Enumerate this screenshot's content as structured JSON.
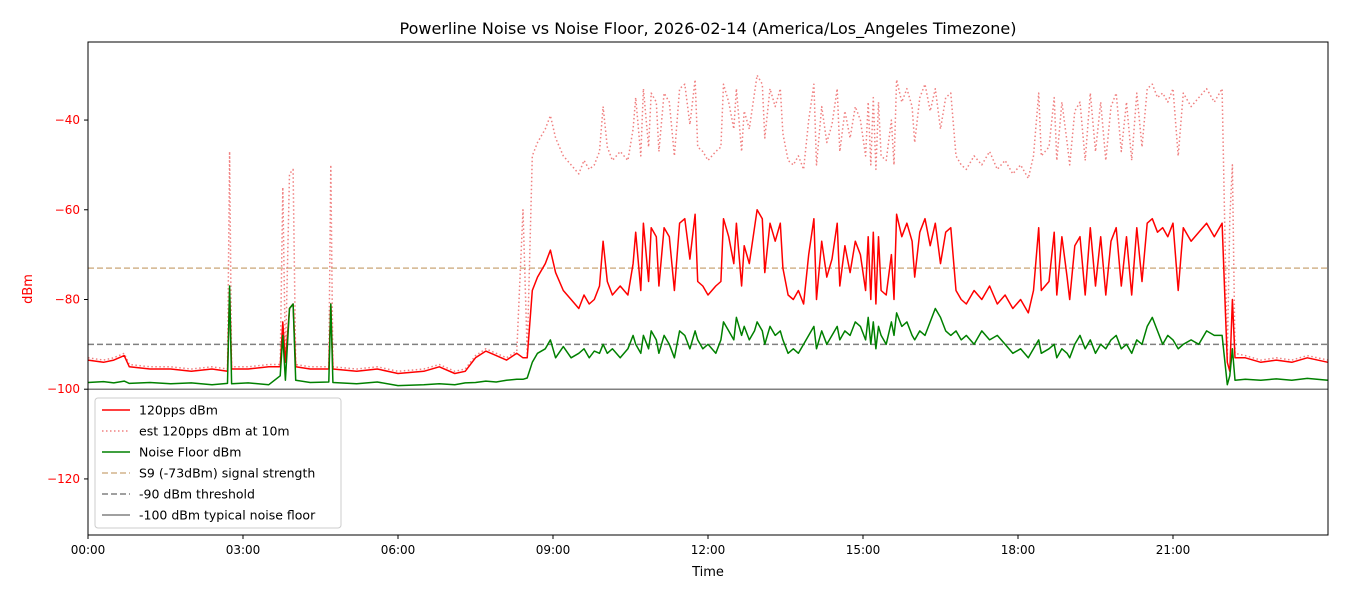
{
  "chart_data": {
    "type": "line",
    "title": "Powerline Noise vs Noise Floor, 2026-02-14 (America/Los_Angeles Timezone)",
    "xlabel": "Time",
    "ylabel": "dBm",
    "xlim": [
      0,
      24
    ],
    "ylim": [
      -132.5,
      -22.6
    ],
    "x_unit": "hours",
    "xticks": [
      0,
      3,
      6,
      9,
      12,
      15,
      18,
      21
    ],
    "xtick_labels": [
      "00:00",
      "03:00",
      "06:00",
      "09:00",
      "12:00",
      "15:00",
      "18:00",
      "21:00"
    ],
    "yticks": [
      -40,
      -60,
      -80,
      -100,
      -120
    ],
    "ytick_labels": [
      "−40",
      "−60",
      "−80",
      "−100",
      "−120"
    ],
    "grid": false,
    "legend_position": "lower-left",
    "colors": {
      "red": "#ff0000",
      "est": "#f08080",
      "green": "#008000",
      "s9": "#d2b48c",
      "threshold": "#808080",
      "floor": "#808080",
      "axis_label": "#ff0000"
    },
    "legend": [
      {
        "label": "120pps dBm",
        "key": "red",
        "style": "solid"
      },
      {
        "label": "est 120pps dBm at 10m",
        "key": "est",
        "style": "dotted"
      },
      {
        "label": "Noise Floor dBm",
        "key": "green",
        "style": "solid"
      },
      {
        "label": "S9 (-73dBm) signal strength",
        "key": "s9",
        "style": "dashed"
      },
      {
        "label": "-90 dBm threshold",
        "key": "threshold",
        "style": "dashed"
      },
      {
        "label": "-100 dBm typical noise floor",
        "key": "floor",
        "style": "solid"
      }
    ],
    "hlines": [
      {
        "key": "s9",
        "y": -73,
        "style": "dashed"
      },
      {
        "key": "threshold",
        "y": -90,
        "style": "dashed"
      },
      {
        "key": "floor",
        "y": -100,
        "style": "solid"
      }
    ],
    "columns": [
      "hour",
      "120pps dBm",
      "est 120pps dBm at 10m",
      "Noise Floor dBm"
    ],
    "rows": [
      [
        0,
        -93.5,
        -93,
        -98.5
      ],
      [
        0.3,
        -94,
        -93.5,
        -98.3
      ],
      [
        0.5,
        -93.5,
        -93,
        -98.6
      ],
      [
        0.7,
        -92.5,
        -92,
        -98.2
      ],
      [
        0.8,
        -95,
        -94.5,
        -98.7
      ],
      [
        1.2,
        -95.5,
        -95,
        -98.5
      ],
      [
        1.6,
        -95.5,
        -95,
        -98.8
      ],
      [
        2,
        -96,
        -95.5,
        -98.6
      ],
      [
        2.4,
        -95.5,
        -95,
        -99
      ],
      [
        2.7,
        -96,
        -95.5,
        -98.7
      ],
      [
        2.74,
        -78,
        -47,
        -77
      ],
      [
        2.78,
        -95.5,
        -95,
        -98.8
      ],
      [
        3.1,
        -95.5,
        -95,
        -98.6
      ],
      [
        3.5,
        -95,
        -94.5,
        -99
      ],
      [
        3.72,
        -95,
        -94.5,
        -97
      ],
      [
        3.77,
        -85,
        -55,
        -88
      ],
      [
        3.82,
        -94,
        -93.5,
        -98
      ],
      [
        3.9,
        -82,
        -52,
        -82
      ],
      [
        3.97,
        -81,
        -51,
        -81
      ],
      [
        4.02,
        -95,
        -94.5,
        -98
      ],
      [
        4.3,
        -95.5,
        -95,
        -98.5
      ],
      [
        4.66,
        -95.5,
        -95,
        -98.4
      ],
      [
        4.7,
        -81,
        -50,
        -81
      ],
      [
        4.74,
        -95.5,
        -95,
        -98.5
      ],
      [
        5.2,
        -96,
        -95.5,
        -98.8
      ],
      [
        5.6,
        -95.5,
        -95,
        -98.4
      ],
      [
        6,
        -96.5,
        -96,
        -99.2
      ],
      [
        6.5,
        -96,
        -95.5,
        -99
      ],
      [
        6.8,
        -95,
        -94.5,
        -98.8
      ],
      [
        7.1,
        -96.5,
        -96,
        -99
      ],
      [
        7.3,
        -96,
        -95.5,
        -98.6
      ],
      [
        7.5,
        -93,
        -92.5,
        -98.5
      ],
      [
        7.7,
        -91.5,
        -91,
        -98.2
      ],
      [
        7.9,
        -92.5,
        -92,
        -98.4
      ],
      [
        8.1,
        -93.5,
        -93,
        -98
      ],
      [
        8.3,
        -92,
        -91.5,
        -97.8
      ],
      [
        8.42,
        -93,
        -60,
        -97.8
      ],
      [
        8.5,
        -93,
        -92,
        -97.5
      ],
      [
        8.6,
        -78,
        -48,
        -94
      ],
      [
        8.7,
        -75,
        -45,
        -92
      ],
      [
        8.85,
        -72,
        -42,
        -91
      ],
      [
        8.95,
        -69,
        -39,
        -89
      ],
      [
        9.05,
        -74,
        -44,
        -93
      ],
      [
        9.2,
        -78,
        -48,
        -90.5
      ],
      [
        9.35,
        -80,
        -50,
        -93
      ],
      [
        9.5,
        -82,
        -52,
        -92
      ],
      [
        9.6,
        -79,
        -49,
        -91
      ],
      [
        9.7,
        -81,
        -51,
        -93
      ],
      [
        9.8,
        -80,
        -50,
        -91.5
      ],
      [
        9.9,
        -77,
        -47,
        -92
      ],
      [
        9.97,
        -67,
        -37,
        -90
      ],
      [
        10.05,
        -76,
        -46,
        -92
      ],
      [
        10.15,
        -79,
        -49,
        -91
      ],
      [
        10.3,
        -77,
        -47,
        -93
      ],
      [
        10.45,
        -79,
        -49,
        -91
      ],
      [
        10.55,
        -72,
        -42,
        -88
      ],
      [
        10.6,
        -65,
        -35,
        -90
      ],
      [
        10.7,
        -78,
        -48,
        -92
      ],
      [
        10.75,
        -63,
        -33,
        -88
      ],
      [
        10.85,
        -76,
        -46,
        -91
      ],
      [
        10.9,
        -64,
        -34,
        -87
      ],
      [
        11.0,
        -66,
        -36,
        -89
      ],
      [
        11.05,
        -77,
        -47,
        -92
      ],
      [
        11.15,
        -64,
        -34,
        -88
      ],
      [
        11.25,
        -66,
        -36,
        -90
      ],
      [
        11.35,
        -78,
        -48,
        -93
      ],
      [
        11.45,
        -63,
        -33,
        -87
      ],
      [
        11.55,
        -62,
        -32,
        -88
      ],
      [
        11.65,
        -71,
        -41,
        -91
      ],
      [
        11.75,
        -61,
        -31,
        -87
      ],
      [
        11.8,
        -76,
        -46,
        -89
      ],
      [
        11.9,
        -77,
        -47,
        -91
      ],
      [
        12.0,
        -79,
        -49,
        -90
      ],
      [
        12.15,
        -77,
        -47,
        -92
      ],
      [
        12.25,
        -76,
        -46,
        -89
      ],
      [
        12.3,
        -62,
        -32,
        -85
      ],
      [
        12.4,
        -66,
        -36,
        -87
      ],
      [
        12.5,
        -72,
        -42,
        -89
      ],
      [
        12.55,
        -63,
        -33,
        -84
      ],
      [
        12.65,
        -77,
        -47,
        -88
      ],
      [
        12.7,
        -68,
        -38,
        -86
      ],
      [
        12.8,
        -72,
        -42,
        -89
      ],
      [
        12.9,
        -64,
        -34,
        -87
      ],
      [
        12.95,
        -60,
        -30,
        -85
      ],
      [
        13.05,
        -62,
        -32,
        -87
      ],
      [
        13.1,
        -74,
        -44,
        -90
      ],
      [
        13.2,
        -63,
        -33,
        -86
      ],
      [
        13.3,
        -67,
        -37,
        -88
      ],
      [
        13.4,
        -63,
        -33,
        -87
      ],
      [
        13.45,
        -73,
        -43,
        -89
      ],
      [
        13.55,
        -79,
        -49,
        -92
      ],
      [
        13.65,
        -80,
        -50,
        -91
      ],
      [
        13.75,
        -78,
        -48,
        -92
      ],
      [
        13.85,
        -81,
        -51,
        -90
      ],
      [
        13.95,
        -70,
        -40,
        -88
      ],
      [
        14.05,
        -62,
        -32,
        -86
      ],
      [
        14.1,
        -80,
        -50,
        -91
      ],
      [
        14.2,
        -67,
        -37,
        -87
      ],
      [
        14.3,
        -75,
        -45,
        -90
      ],
      [
        14.4,
        -71,
        -41,
        -88
      ],
      [
        14.5,
        -63,
        -33,
        -86
      ],
      [
        14.55,
        -77,
        -47,
        -89
      ],
      [
        14.65,
        -68,
        -38,
        -87
      ],
      [
        14.75,
        -74,
        -44,
        -88
      ],
      [
        14.85,
        -67,
        -37,
        -85
      ],
      [
        14.95,
        -70,
        -40,
        -86
      ],
      [
        15.05,
        -78,
        -48,
        -89
      ],
      [
        15.1,
        -66,
        -36,
        -84
      ],
      [
        15.15,
        -80,
        -50,
        -90
      ],
      [
        15.2,
        -65,
        -35,
        -85
      ],
      [
        15.25,
        -81,
        -51,
        -91
      ],
      [
        15.3,
        -66,
        -36,
        -86
      ],
      [
        15.35,
        -78,
        -48,
        -88
      ],
      [
        15.45,
        -79,
        -49,
        -90
      ],
      [
        15.55,
        -70,
        -40,
        -85
      ],
      [
        15.6,
        -80,
        -50,
        -88
      ],
      [
        15.65,
        -61,
        -31,
        -83
      ],
      [
        15.75,
        -66,
        -36,
        -86
      ],
      [
        15.85,
        -63,
        -33,
        -85
      ],
      [
        15.95,
        -67,
        -37,
        -88
      ],
      [
        16.0,
        -75,
        -45,
        -89
      ],
      [
        16.1,
        -65,
        -35,
        -87
      ],
      [
        16.2,
        -62,
        -32,
        -88
      ],
      [
        16.3,
        -68,
        -38,
        -85
      ],
      [
        16.4,
        -63,
        -33,
        -82
      ],
      [
        16.5,
        -72,
        -42,
        -84
      ],
      [
        16.6,
        -65,
        -35,
        -87
      ],
      [
        16.7,
        -64,
        -34,
        -88
      ],
      [
        16.8,
        -78,
        -48,
        -87
      ],
      [
        16.9,
        -80,
        -50,
        -89
      ],
      [
        17.0,
        -81,
        -51,
        -88
      ],
      [
        17.15,
        -78,
        -48,
        -90
      ],
      [
        17.3,
        -80,
        -50,
        -87
      ],
      [
        17.45,
        -77,
        -47,
        -89
      ],
      [
        17.6,
        -81,
        -51,
        -88
      ],
      [
        17.75,
        -79,
        -49,
        -90
      ],
      [
        17.9,
        -82,
        -52,
        -92
      ],
      [
        18.05,
        -80,
        -50,
        -91
      ],
      [
        18.2,
        -83,
        -53,
        -93
      ],
      [
        18.3,
        -78,
        -48,
        -91
      ],
      [
        18.4,
        -64,
        -34,
        -89
      ],
      [
        18.45,
        -78,
        -48,
        -92
      ],
      [
        18.6,
        -76,
        -46,
        -91
      ],
      [
        18.7,
        -65,
        -35,
        -90
      ],
      [
        18.75,
        -79,
        -49,
        -93
      ],
      [
        18.85,
        -66,
        -36,
        -91
      ],
      [
        18.95,
        -75,
        -45,
        -92
      ],
      [
        19.0,
        -80,
        -50,
        -93
      ],
      [
        19.1,
        -68,
        -38,
        -90
      ],
      [
        19.2,
        -66,
        -36,
        -88
      ],
      [
        19.3,
        -79,
        -49,
        -91
      ],
      [
        19.4,
        -64,
        -34,
        -89
      ],
      [
        19.5,
        -77,
        -47,
        -92
      ],
      [
        19.6,
        -66,
        -36,
        -90
      ],
      [
        19.7,
        -79,
        -49,
        -91
      ],
      [
        19.8,
        -67,
        -37,
        -89
      ],
      [
        19.9,
        -64,
        -34,
        -88
      ],
      [
        20.0,
        -77,
        -47,
        -91
      ],
      [
        20.1,
        -66,
        -36,
        -90
      ],
      [
        20.2,
        -79,
        -49,
        -92
      ],
      [
        20.3,
        -64,
        -34,
        -89
      ],
      [
        20.4,
        -76,
        -46,
        -90
      ],
      [
        20.5,
        -63,
        -33,
        -86
      ],
      [
        20.6,
        -62,
        -32,
        -84
      ],
      [
        20.7,
        -65,
        -35,
        -87
      ],
      [
        20.8,
        -64,
        -34,
        -90
      ],
      [
        20.9,
        -66,
        -36,
        -88
      ],
      [
        21.0,
        -63,
        -33,
        -89
      ],
      [
        21.1,
        -78,
        -48,
        -91
      ],
      [
        21.2,
        -64,
        -34,
        -90
      ],
      [
        21.35,
        -67,
        -37,
        -89
      ],
      [
        21.5,
        -65,
        -35,
        -90
      ],
      [
        21.65,
        -63,
        -33,
        -87
      ],
      [
        21.8,
        -66,
        -36,
        -88
      ],
      [
        21.95,
        -63,
        -33,
        -88
      ],
      [
        22.05,
        -94,
        -93,
        -99
      ],
      [
        22.1,
        -96,
        -62,
        -97
      ],
      [
        22.15,
        -80,
        -50,
        -91
      ],
      [
        22.2,
        -93,
        -92,
        -98
      ],
      [
        22.4,
        -93,
        -92.5,
        -97.8
      ],
      [
        22.7,
        -94,
        -93.5,
        -98
      ],
      [
        23.0,
        -93.5,
        -93,
        -97.7
      ],
      [
        23.3,
        -94,
        -93.5,
        -98
      ],
      [
        23.6,
        -93,
        -92.5,
        -97.6
      ],
      [
        24,
        -94,
        -93.5,
        -98
      ]
    ]
  }
}
